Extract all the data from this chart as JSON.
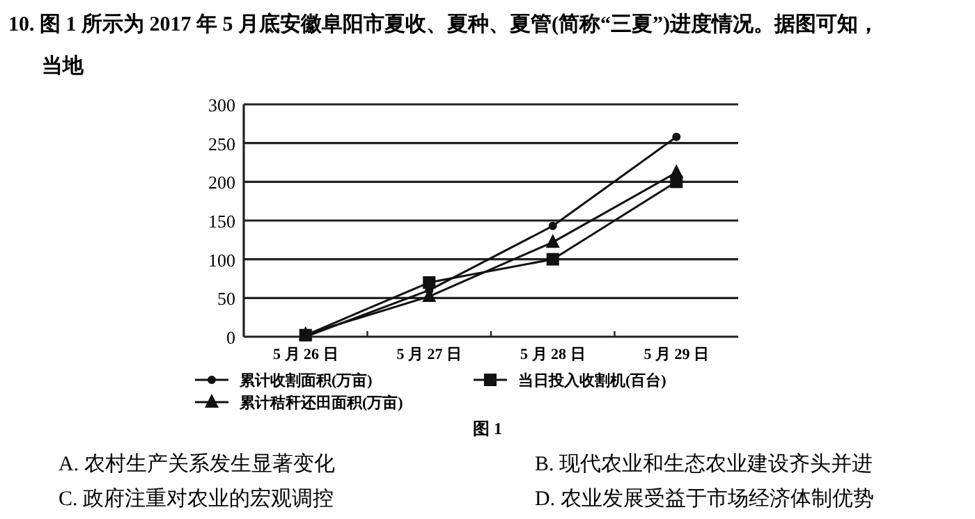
{
  "chart_data": {
    "type": "line",
    "title": "10. 图 1 所示为 2017 年 5 月底安徽阜阳市夏收、夏种、夏管(简称“三夏”)进度情况。据图可知，",
    "subtitle": "当地",
    "categories": [
      "5 月 26 日",
      "5 月 27 日",
      "5 月 28 日",
      "5 月 29 日"
    ],
    "series": [
      {
        "name": "累计收割面积(万亩)",
        "color": "#111111",
        "marker": "circle",
        "values": [
          0,
          60,
          143,
          258
        ]
      },
      {
        "name": "当日投入收割机(百台)",
        "color": "#111111",
        "marker": "square",
        "values": [
          2,
          70,
          100,
          200
        ]
      },
      {
        "name": "累计秸秆还田面积(万亩)",
        "color": "#111111",
        "marker": "triangle",
        "values": [
          3,
          52,
          122,
          212
        ]
      }
    ],
    "ylim": [
      0,
      300
    ],
    "yticks": [
      0,
      50,
      100,
      150,
      200,
      250,
      300
    ],
    "grid": "y",
    "legend": "bottom",
    "annotations": [
      "图 1",
      "A. 农村生产关系发生显著变化",
      "B. 现代农业和生态农业建设齐头并进",
      "C. 政府注重对农业的宏观调控",
      "D. 农业发展受益于市场经济体制优势"
    ]
  }
}
